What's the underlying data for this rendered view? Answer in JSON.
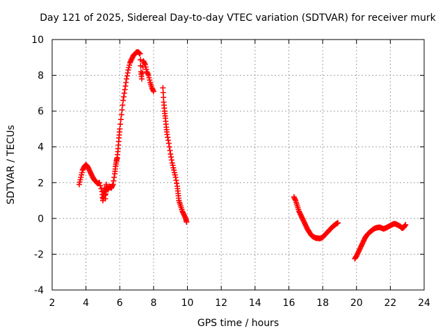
{
  "colors": {
    "series": "#ff0000",
    "axis": "#000000",
    "grid": "#a0a0a0",
    "background": "#ffffff"
  },
  "chart_data": {
    "type": "scatter",
    "title": "Day 121 of 2025, Sidereal Day-to-day VTEC variation (SDTVAR) for receiver murk",
    "xlabel": "GPS time / hours",
    "ylabel": "SDTVAR / TECUs",
    "xlim": [
      2,
      24
    ],
    "ylim": [
      -4,
      10
    ],
    "grid": true,
    "x_ticks": [
      "2",
      "4",
      "6",
      "8",
      "10",
      "12",
      "14",
      "16",
      "18",
      "20",
      "22",
      "24"
    ],
    "y_ticks": [
      "-4",
      "-2",
      "0",
      "2",
      "4",
      "6",
      "8",
      "10"
    ],
    "marker": "plus",
    "series": [
      {
        "name": "SDTVAR",
        "segments": [
          [
            [
              3.6,
              1.9
            ],
            [
              3.7,
              2.3
            ],
            [
              3.8,
              2.7
            ],
            [
              3.9,
              2.9
            ],
            [
              4.0,
              3.0
            ],
            [
              4.1,
              2.9
            ],
            [
              4.2,
              2.7
            ],
            [
              4.3,
              2.5
            ],
            [
              4.4,
              2.3
            ],
            [
              4.5,
              2.15
            ],
            [
              4.6,
              2.05
            ],
            [
              4.7,
              1.95
            ],
            [
              4.8,
              2.0
            ],
            [
              4.95,
              1.5
            ],
            [
              5.0,
              1.0
            ],
            [
              5.05,
              1.3
            ],
            [
              5.1,
              1.7
            ],
            [
              5.15,
              1.1
            ],
            [
              5.2,
              1.9
            ],
            [
              5.3,
              1.6
            ],
            [
              5.4,
              1.8
            ],
            [
              5.5,
              1.7
            ],
            [
              5.6,
              1.9
            ],
            [
              5.7,
              2.5
            ],
            [
              5.75,
              2.9
            ],
            [
              5.8,
              3.2
            ],
            [
              5.85,
              3.4
            ],
            [
              5.9,
              3.9
            ],
            [
              5.95,
              4.5
            ],
            [
              6.0,
              5.0
            ],
            [
              6.1,
              5.8
            ],
            [
              6.2,
              6.6
            ],
            [
              6.3,
              7.2
            ],
            [
              6.4,
              7.8
            ],
            [
              6.5,
              8.3
            ],
            [
              6.6,
              8.7
            ],
            [
              6.7,
              8.9
            ],
            [
              6.8,
              9.1
            ],
            [
              6.9,
              9.2
            ],
            [
              7.0,
              9.3
            ],
            [
              7.1,
              9.3
            ],
            [
              7.2,
              9.2
            ],
            [
              7.25,
              8.2
            ],
            [
              7.3,
              7.8
            ],
            [
              7.4,
              8.8
            ],
            [
              7.5,
              8.6
            ],
            [
              7.6,
              8.2
            ],
            [
              7.7,
              8.0
            ],
            [
              7.8,
              7.6
            ],
            [
              7.9,
              7.3
            ],
            [
              8.0,
              7.1
            ]
          ],
          [
            [
              8.55,
              7.3
            ],
            [
              8.6,
              6.5
            ],
            [
              8.65,
              6.0
            ],
            [
              8.7,
              5.6
            ],
            [
              8.75,
              5.1
            ],
            [
              8.8,
              4.7
            ],
            [
              8.9,
              4.2
            ],
            [
              9.0,
              3.6
            ],
            [
              9.1,
              3.1
            ],
            [
              9.2,
              2.7
            ],
            [
              9.3,
              2.3
            ],
            [
              9.4,
              1.8
            ],
            [
              9.45,
              1.4
            ],
            [
              9.5,
              1.0
            ],
            [
              9.6,
              0.7
            ],
            [
              9.7,
              0.4
            ],
            [
              9.8,
              0.2
            ],
            [
              9.9,
              0.0
            ],
            [
              9.95,
              -0.2
            ]
          ],
          [
            [
              16.3,
              1.2
            ],
            [
              16.4,
              1.0
            ],
            [
              16.5,
              0.7
            ],
            [
              16.6,
              0.4
            ],
            [
              16.7,
              0.2
            ],
            [
              16.8,
              0.0
            ],
            [
              16.9,
              -0.2
            ],
            [
              17.0,
              -0.4
            ],
            [
              17.1,
              -0.6
            ],
            [
              17.2,
              -0.75
            ],
            [
              17.3,
              -0.9
            ],
            [
              17.4,
              -1.0
            ],
            [
              17.5,
              -1.05
            ],
            [
              17.6,
              -1.1
            ],
            [
              17.7,
              -1.1
            ],
            [
              17.8,
              -1.12
            ],
            [
              17.9,
              -1.1
            ],
            [
              18.0,
              -1.05
            ],
            [
              18.1,
              -0.95
            ],
            [
              18.2,
              -0.85
            ],
            [
              18.3,
              -0.75
            ],
            [
              18.4,
              -0.65
            ],
            [
              18.5,
              -0.55
            ],
            [
              18.6,
              -0.45
            ],
            [
              18.7,
              -0.38
            ],
            [
              18.8,
              -0.3
            ],
            [
              18.9,
              -0.25
            ]
          ],
          [
            [
              19.9,
              -2.25
            ],
            [
              20.0,
              -2.1
            ],
            [
              20.1,
              -1.9
            ],
            [
              20.2,
              -1.7
            ],
            [
              20.3,
              -1.5
            ],
            [
              20.4,
              -1.3
            ],
            [
              20.5,
              -1.1
            ],
            [
              20.6,
              -0.95
            ],
            [
              20.7,
              -0.85
            ],
            [
              20.8,
              -0.75
            ],
            [
              20.9,
              -0.68
            ],
            [
              21.0,
              -0.6
            ],
            [
              21.1,
              -0.55
            ],
            [
              21.2,
              -0.52
            ],
            [
              21.3,
              -0.5
            ],
            [
              21.4,
              -0.5
            ],
            [
              21.5,
              -0.55
            ],
            [
              21.6,
              -0.58
            ],
            [
              21.7,
              -0.55
            ],
            [
              21.8,
              -0.5
            ],
            [
              21.9,
              -0.45
            ],
            [
              22.0,
              -0.4
            ],
            [
              22.1,
              -0.35
            ],
            [
              22.2,
              -0.3
            ],
            [
              22.3,
              -0.3
            ],
            [
              22.4,
              -0.35
            ],
            [
              22.5,
              -0.4
            ],
            [
              22.6,
              -0.45
            ],
            [
              22.7,
              -0.55
            ],
            [
              22.8,
              -0.5
            ],
            [
              22.9,
              -0.35
            ]
          ]
        ]
      }
    ]
  }
}
